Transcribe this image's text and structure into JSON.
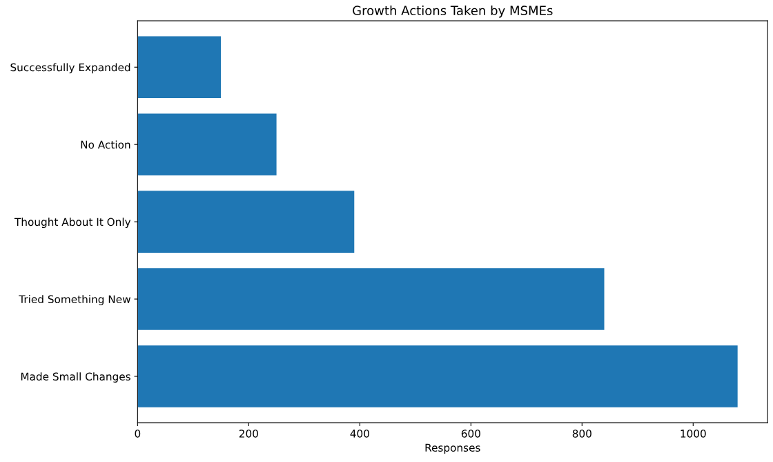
{
  "chart_data": {
    "type": "bar",
    "orientation": "horizontal",
    "title": "Growth Actions Taken by MSMEs",
    "xlabel": "Responses",
    "categories": [
      "Successfully Expanded",
      "No Action",
      "Thought About It Only",
      "Tried Something New",
      "Made Small Changes"
    ],
    "values": [
      150,
      250,
      390,
      840,
      1080
    ],
    "color": "#1f77b4",
    "xlim": [
      0,
      1134
    ],
    "xticks": [
      0,
      200,
      400,
      600,
      800,
      1000
    ],
    "grid": false,
    "legend": false
  }
}
